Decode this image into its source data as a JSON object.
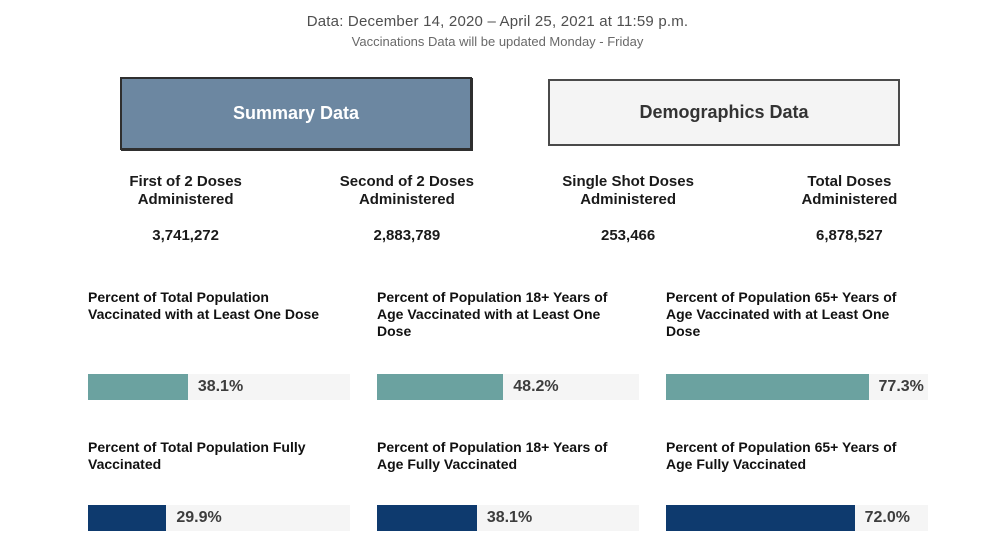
{
  "header": {
    "date_range": "Data: December 14, 2020 – April 25, 2021 at 11:59 p.m.",
    "update_note": "Vaccinations Data will be updated Monday - Friday"
  },
  "tabs": {
    "summary": "Summary Data",
    "demographics": "Demographics Data"
  },
  "stats": [
    {
      "label": "First of 2 Doses Administered",
      "value": "3,741,272"
    },
    {
      "label": "Second of 2 Doses Administered",
      "value": "2,883,789"
    },
    {
      "label": "Single Shot Doses Administered",
      "value": "253,466"
    },
    {
      "label": "Total Doses Administered",
      "value": "6,878,527"
    }
  ],
  "colors": {
    "active_tab": "#6C87A1",
    "inactive_tab": "#F4F4F4",
    "one_dose_bar": "#6BA2A0",
    "fully_vaccinated_bar": "#0E3A6E",
    "bar_track": "#F5F5F5"
  },
  "chart_data": [
    {
      "type": "bar",
      "orientation": "horizontal",
      "categories": [
        "Percent of Total Population Vaccinated with at Least One Dose",
        "Percent of Population 18+ Years of Age Vaccinated with at Least One Dose",
        "Percent of Population 65+ Years of Age Vaccinated with at Least One Dose"
      ],
      "values": [
        38.1,
        48.2,
        77.3
      ],
      "value_labels": [
        "38.1%",
        "48.2%",
        "77.3%"
      ],
      "xlim": [
        0,
        100
      ],
      "bar_color": "#6BA2A0",
      "track_color": "#F5F5F5"
    },
    {
      "type": "bar",
      "orientation": "horizontal",
      "categories": [
        "Percent of Total Population Fully Vaccinated",
        "Percent of Population 18+ Years of Age Fully Vaccinated",
        "Percent of Population 65+ Years of Age Fully Vaccinated"
      ],
      "values": [
        29.9,
        38.1,
        72.0
      ],
      "value_labels": [
        "29.9%",
        "38.1%",
        "72.0%"
      ],
      "xlim": [
        0,
        100
      ],
      "bar_color": "#0E3A6E",
      "track_color": "#F5F5F5"
    }
  ]
}
